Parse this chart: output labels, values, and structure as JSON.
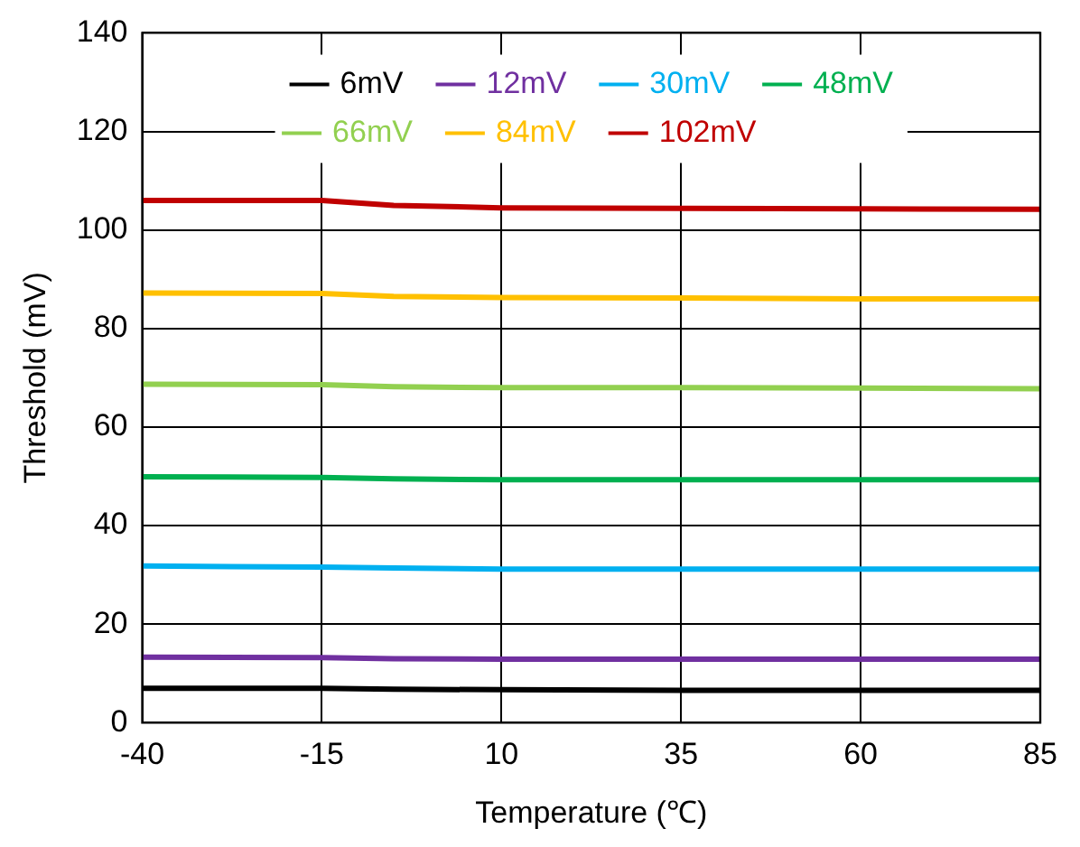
{
  "chart_data": {
    "type": "line",
    "xlabel": "Temperature (℃)",
    "ylabel": "Threshold (mV)",
    "x": [
      -40,
      -15,
      -5,
      10,
      35,
      60,
      85
    ],
    "series": [
      {
        "name": "6mV",
        "color": "#000000",
        "values": [
          7.0,
          7.0,
          6.8,
          6.7,
          6.6,
          6.6,
          6.6
        ]
      },
      {
        "name": "12mV",
        "color": "#7030a0",
        "values": [
          13.3,
          13.2,
          13.0,
          12.9,
          12.9,
          12.9,
          12.9
        ]
      },
      {
        "name": "30mV",
        "color": "#00b0f0",
        "values": [
          31.8,
          31.6,
          31.4,
          31.2,
          31.2,
          31.2,
          31.2
        ]
      },
      {
        "name": "48mV",
        "color": "#00b050",
        "values": [
          49.9,
          49.8,
          49.5,
          49.3,
          49.3,
          49.3,
          49.3
        ]
      },
      {
        "name": "66mV",
        "color": "#92d050",
        "values": [
          68.7,
          68.6,
          68.2,
          68.0,
          68.0,
          67.9,
          67.8
        ]
      },
      {
        "name": "84mV",
        "color": "#ffc000",
        "values": [
          87.2,
          87.1,
          86.5,
          86.3,
          86.2,
          86.0,
          86.0
        ]
      },
      {
        "name": "102mV",
        "color": "#c00000",
        "values": [
          106.0,
          106.0,
          105.0,
          104.5,
          104.4,
          104.3,
          104.2
        ]
      }
    ],
    "xlim": [
      -40,
      85
    ],
    "xticks": [
      -40,
      -15,
      10,
      35,
      60,
      85
    ],
    "ylim": [
      0,
      140
    ],
    "yticks": [
      0,
      20,
      40,
      60,
      80,
      100,
      120,
      140
    ],
    "grid": true,
    "legend": "top",
    "marker": "none",
    "line_style": "solid"
  }
}
